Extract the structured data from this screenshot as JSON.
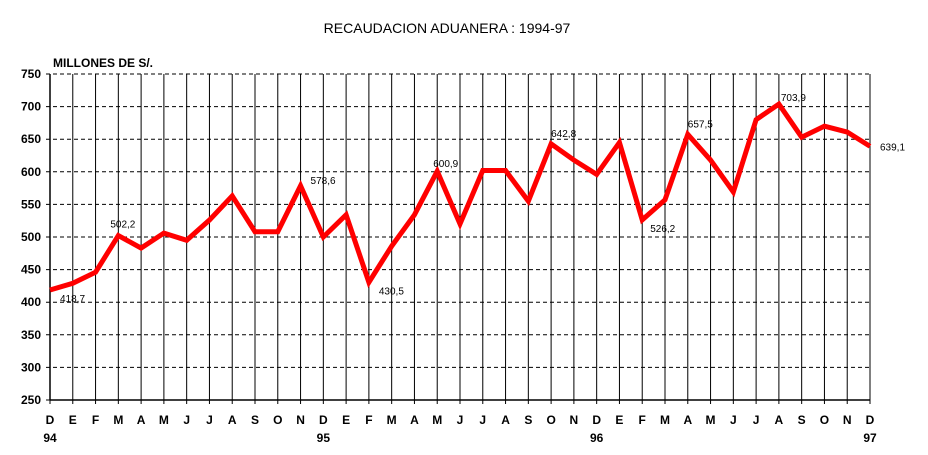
{
  "chart_data": {
    "type": "line",
    "title": "RECAUDACION ADUANERA : 1994-97",
    "ylabel": "MILLONES DE S/.",
    "xlabel": "",
    "ylim": [
      250,
      750
    ],
    "yticks": [
      250,
      300,
      350,
      400,
      450,
      500,
      550,
      600,
      650,
      700,
      750
    ],
    "grid": true,
    "line_color": "#ff0000",
    "categories": [
      "D",
      "E",
      "F",
      "M",
      "A",
      "M",
      "J",
      "J",
      "A",
      "S",
      "O",
      "N",
      "D",
      "E",
      "F",
      "M",
      "A",
      "M",
      "J",
      "J",
      "A",
      "S",
      "O",
      "N",
      "D",
      "E",
      "F",
      "M",
      "A",
      "M",
      "J",
      "J",
      "A",
      "S",
      "O",
      "N",
      "D"
    ],
    "year_labels": [
      {
        "index": 0,
        "text": "94"
      },
      {
        "index": 12,
        "text": "95"
      },
      {
        "index": 24,
        "text": "96"
      },
      {
        "index": 36,
        "text": "97"
      }
    ],
    "series": [
      {
        "name": "Recaudación aduanera",
        "values": [
          418.7,
          429,
          446,
          502.2,
          483,
          506,
          495,
          526,
          563,
          508,
          508,
          578.6,
          500,
          534,
          430.5,
          486,
          534,
          600.9,
          520,
          602,
          602,
          555,
          642.8,
          618,
          596,
          645,
          526.2,
          557,
          657.5,
          618,
          569,
          680,
          703.9,
          653,
          670,
          661,
          639.1
        ]
      }
    ],
    "annotations": [
      {
        "index": 0,
        "text": "418,7"
      },
      {
        "index": 3,
        "text": "502,2"
      },
      {
        "index": 11,
        "text": "578,6"
      },
      {
        "index": 14,
        "text": "430,5"
      },
      {
        "index": 17,
        "text": "600,9"
      },
      {
        "index": 22,
        "text": "642,8"
      },
      {
        "index": 26,
        "text": "526,2"
      },
      {
        "index": 28,
        "text": "657,5"
      },
      {
        "index": 32,
        "text": "703,9"
      },
      {
        "index": 36,
        "text": "639,1"
      }
    ]
  }
}
